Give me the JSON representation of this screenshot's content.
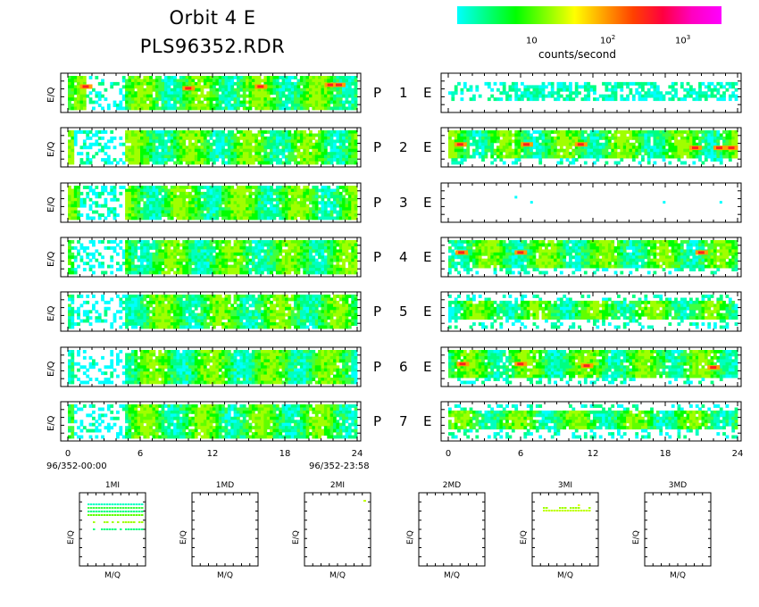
{
  "header": {
    "title": "Orbit 4 E",
    "subtitle": "PLS96352.RDR"
  },
  "colorbar": {
    "label": "counts/second",
    "ticks": [
      {
        "base": "10",
        "exp": ""
      },
      {
        "base": "10",
        "exp": "2"
      },
      {
        "base": "10",
        "exp": "3"
      }
    ],
    "colors": [
      "#00ffff",
      "#00ff80",
      "#00ff00",
      "#80ff00",
      "#ffff00",
      "#ffa000",
      "#ff4000",
      "#ff0040",
      "#ff00c0",
      "#ff00ff"
    ]
  },
  "chart_data": [
    {
      "type": "heatmap",
      "title": "",
      "xlabel": "",
      "ylabel": "E/Q",
      "xlim": [
        0,
        24
      ],
      "xticks": [
        "0",
        "6",
        "12",
        "18",
        "24"
      ],
      "time_start": "96/352-00:00",
      "time_end": "96/352-23:58",
      "row_labels": [
        {
          "p": "P",
          "n": "1",
          "e": "E"
        },
        {
          "p": "P",
          "n": "2",
          "e": "E"
        },
        {
          "p": "P",
          "n": "3",
          "e": "E"
        },
        {
          "p": "P",
          "n": "4",
          "e": "E"
        },
        {
          "p": "P",
          "n": "5",
          "e": "E"
        },
        {
          "p": "P",
          "n": "6",
          "e": "E"
        },
        {
          "p": "P",
          "n": "7",
          "e": "E"
        }
      ],
      "series": [
        {
          "panel": "left",
          "sensor": "P1",
          "hot_spots": [
            [
              1.0,
              0.25
            ],
            [
              9.5,
              0.3
            ],
            [
              15.5,
              0.25
            ],
            [
              21.3,
              0.2
            ],
            [
              22.0,
              0.2
            ]
          ],
          "gap_hours": [
            [
              1.5,
              4.5
            ]
          ],
          "activity": "high"
        },
        {
          "panel": "left",
          "sensor": "P2",
          "hot_spots": [],
          "gap_hours": [
            [
              0.5,
              4.5
            ]
          ],
          "activity": "medium"
        },
        {
          "panel": "left",
          "sensor": "P3",
          "hot_spots": [],
          "gap_hours": [
            [
              1.0,
              4.5
            ]
          ],
          "activity": "medium"
        },
        {
          "panel": "left",
          "sensor": "P4",
          "hot_spots": [],
          "gap_hours": [
            [
              0.5,
              4.5
            ]
          ],
          "activity": "medium"
        },
        {
          "panel": "left",
          "sensor": "P5",
          "hot_spots": [],
          "gap_hours": [
            [
              0.5,
              4.5
            ]
          ],
          "activity": "medium"
        },
        {
          "panel": "left",
          "sensor": "P6",
          "hot_spots": [],
          "gap_hours": [
            [
              0.5,
              4.5
            ]
          ],
          "activity": "medium"
        },
        {
          "panel": "left",
          "sensor": "P7",
          "hot_spots": [],
          "gap_hours": [
            [
              0.5,
              4.5
            ]
          ],
          "activity": "medium"
        },
        {
          "panel": "right",
          "sensor": "P1",
          "hot_spots": [],
          "gap_hours": [
            [
              1.5,
              4.0
            ]
          ],
          "activity": "low"
        },
        {
          "panel": "right",
          "sensor": "P2",
          "hot_spots": [
            [
              0.5,
              0.35
            ],
            [
              6.0,
              0.35
            ],
            [
              10.5,
              0.35
            ],
            [
              20.0,
              0.45
            ],
            [
              22.0,
              0.45
            ],
            [
              23.0,
              0.45
            ]
          ],
          "gap_hours": [],
          "activity": "high"
        },
        {
          "panel": "right",
          "sensor": "P3",
          "hot_spots": [],
          "gap_hours": [],
          "activity": "none"
        },
        {
          "panel": "right",
          "sensor": "P4",
          "hot_spots": [
            [
              0.6,
              0.3
            ],
            [
              5.5,
              0.3
            ],
            [
              20.5,
              0.3
            ]
          ],
          "gap_hours": [],
          "activity": "high"
        },
        {
          "panel": "right",
          "sensor": "P5",
          "hot_spots": [],
          "gap_hours": [],
          "activity": "medium"
        },
        {
          "panel": "right",
          "sensor": "P6",
          "hot_spots": [
            [
              0.7,
              0.35
            ],
            [
              5.5,
              0.35
            ],
            [
              11.0,
              0.4
            ],
            [
              21.5,
              0.45
            ]
          ],
          "gap_hours": [],
          "activity": "high"
        },
        {
          "panel": "right",
          "sensor": "P7",
          "hot_spots": [],
          "gap_hours": [],
          "activity": "medium"
        }
      ]
    },
    {
      "type": "scatter",
      "title": "",
      "xlabel": "M/Q",
      "ylabel": "E/Q",
      "panels": [
        {
          "name": "1MI",
          "points": "horizontal bands of cyan/green points across most of M/Q range"
        },
        {
          "name": "1MD",
          "points": ""
        },
        {
          "name": "2MI",
          "points": "single point near top-right"
        },
        {
          "name": "2MD",
          "points": ""
        },
        {
          "name": "3MI",
          "points": "scattered yellow-green points near top"
        },
        {
          "name": "3MD",
          "points": ""
        }
      ]
    }
  ]
}
